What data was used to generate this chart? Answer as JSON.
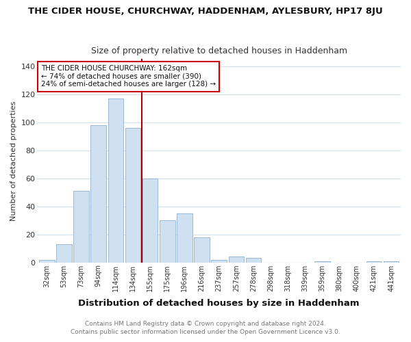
{
  "title": "THE CIDER HOUSE, CHURCHWAY, HADDENHAM, AYLESBURY, HP17 8JU",
  "subtitle": "Size of property relative to detached houses in Haddenham",
  "xlabel": "Distribution of detached houses by size in Haddenham",
  "ylabel": "Number of detached properties",
  "categories": [
    "32sqm",
    "53sqm",
    "73sqm",
    "94sqm",
    "114sqm",
    "134sqm",
    "155sqm",
    "175sqm",
    "196sqm",
    "216sqm",
    "237sqm",
    "257sqm",
    "278sqm",
    "298sqm",
    "318sqm",
    "339sqm",
    "359sqm",
    "380sqm",
    "400sqm",
    "421sqm",
    "441sqm"
  ],
  "values": [
    2,
    13,
    51,
    98,
    117,
    96,
    60,
    30,
    35,
    18,
    2,
    4,
    3,
    0,
    0,
    0,
    1,
    0,
    0,
    1,
    1
  ],
  "bar_color": "#cfe0f0",
  "bar_edge_color": "#9ab8d4",
  "vline_color": "#aa0000",
  "annotation_title": "THE CIDER HOUSE CHURCHWAY: 162sqm",
  "annotation_line1": "← 74% of detached houses are smaller (390)",
  "annotation_line2": "24% of semi-detached houses are larger (128) →",
  "annotation_box_edge": "#cc0000",
  "ylim": [
    0,
    145
  ],
  "yticks": [
    0,
    20,
    40,
    60,
    80,
    100,
    120,
    140
  ],
  "footer1": "Contains HM Land Registry data © Crown copyright and database right 2024.",
  "footer2": "Contains public sector information licensed under the Open Government Licence v3.0.",
  "bg_color": "#ffffff",
  "grid_color": "#d8e4ed"
}
